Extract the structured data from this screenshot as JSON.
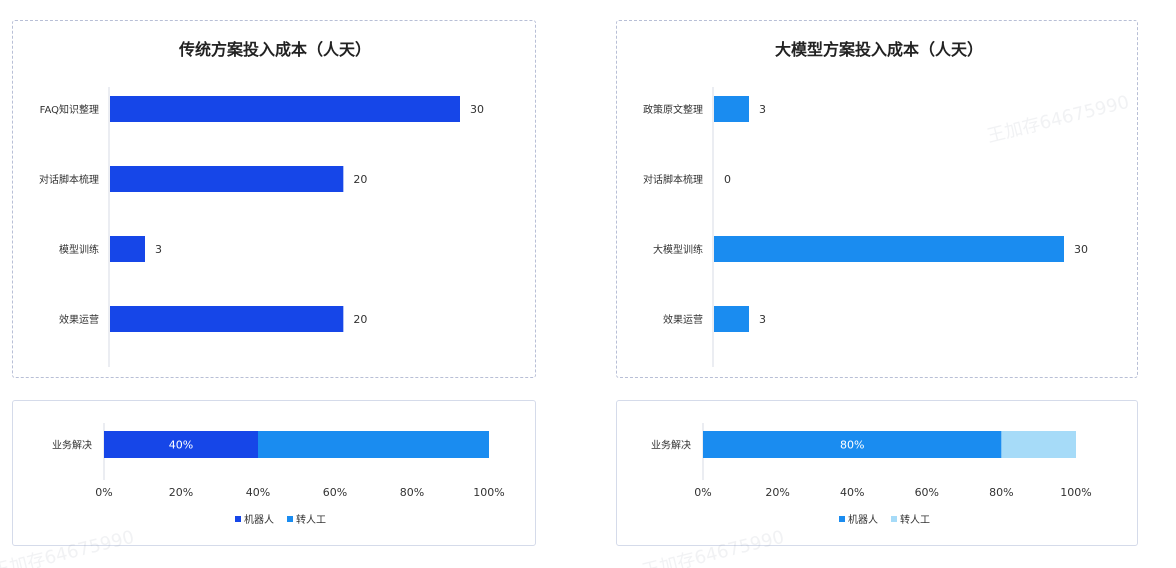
{
  "charts": [
    {
      "type": "bar",
      "title": "传统方案投入成本（人天）",
      "categories": [
        "FAQ知识整理",
        "对话脚本梳理",
        "模型训练",
        "效果运营"
      ],
      "values": [
        30,
        20,
        3,
        20
      ],
      "color": "#1646e8",
      "xlim": [
        0,
        30
      ]
    },
    {
      "type": "bar",
      "title": "大模型方案投入成本（人天）",
      "categories": [
        "政策原文整理",
        "对话脚本梳理",
        "大模型训练",
        "效果运营"
      ],
      "values": [
        3,
        0,
        30,
        3
      ],
      "color": "#1a8cf0",
      "xlim": [
        0,
        30
      ]
    },
    {
      "type": "bar",
      "stacked": true,
      "category": "业务解决",
      "series": [
        {
          "name": "机器人",
          "value": 40,
          "color": "#1646e8",
          "label": "40%"
        },
        {
          "name": "转人工",
          "value": 60,
          "color": "#1a8cf0",
          "label": ""
        }
      ],
      "ticks": [
        "0%",
        "20%",
        "40%",
        "60%",
        "80%",
        "100%"
      ],
      "legend_position": "bottom-center"
    },
    {
      "type": "bar",
      "stacked": true,
      "category": "业务解决",
      "series": [
        {
          "name": "机器人",
          "value": 80,
          "color": "#1a8cf0",
          "label": "80%"
        },
        {
          "name": "转人工",
          "value": 20,
          "color": "#a6dbf8",
          "label": ""
        }
      ],
      "ticks": [
        "0%",
        "20%",
        "40%",
        "60%",
        "80%",
        "100%"
      ],
      "legend_position": "bottom-center"
    }
  ],
  "watermarks": [
    "王加存64675990",
    "王加存64675990",
    "王加存64675990"
  ]
}
